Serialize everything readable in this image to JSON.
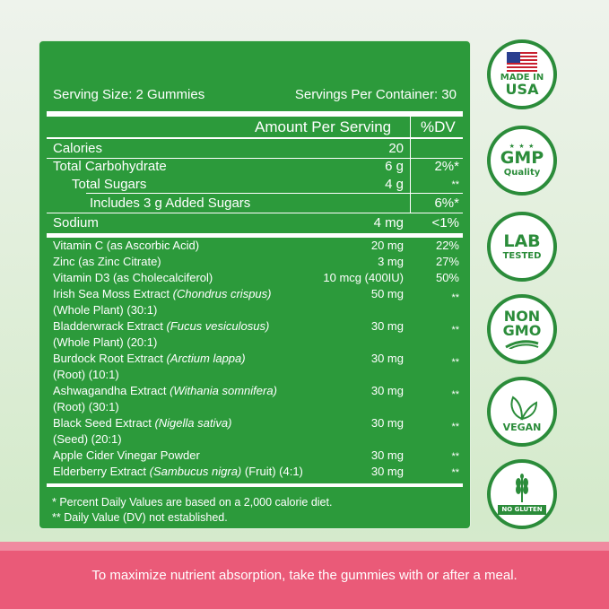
{
  "facts": {
    "serving_size": "Serving Size: 2 Gummies",
    "servings_per_container": "Servings Per Container: 30",
    "amount_header": "Amount Per Serving",
    "dv_header": "%DV",
    "macros": [
      {
        "name": "Calories",
        "amount": "20",
        "dv": ""
      },
      {
        "name": "Total Carbohydrate",
        "amount": "6 g",
        "dv": "2%*"
      },
      {
        "name": "Total Sugars",
        "amount": "4 g",
        "dv": "**"
      },
      {
        "name": "Includes 3 g Added Sugars",
        "amount": "",
        "dv": "6%*"
      },
      {
        "name": "Sodium",
        "amount": "4 mg",
        "dv": "<1%"
      }
    ],
    "vitamins": [
      {
        "name": "Vitamin C (as Ascorbic Acid)",
        "amount": "20 mg",
        "dv": "22%"
      },
      {
        "name": "Zinc (as Zinc Citrate)",
        "amount": "3 mg",
        "dv": "27%"
      },
      {
        "name": "Vitamin D3 (as Cholecalciferol)",
        "amount": "10 mcg (400IU)",
        "dv": "50%"
      }
    ],
    "extracts": [
      {
        "name": "Irish Sea Moss Extract",
        "sci": "(Chondrus crispus)",
        "line2": "(Whole Plant) (30:1)",
        "amount": "50 mg",
        "dv": "**"
      },
      {
        "name": "Bladderwrack Extract",
        "sci": "(Fucus vesiculosus)",
        "line2": "(Whole Plant) (20:1)",
        "amount": "30 mg",
        "dv": "**"
      },
      {
        "name": "Burdock Root Extract",
        "sci": "(Arctium lappa)",
        "line2": "(Root) (10:1)",
        "amount": "30 mg",
        "dv": "**"
      },
      {
        "name": "Ashwagandha Extract",
        "sci": "(Withania somnifera)",
        "line2": "(Root) (30:1)",
        "amount": "30 mg",
        "dv": "**"
      },
      {
        "name": "Black Seed Extract",
        "sci": "(Nigella sativa)",
        "line2": "(Seed) (20:1)",
        "amount": "30 mg",
        "dv": "**"
      },
      {
        "name": "Apple Cider Vinegar Powder",
        "sci": "",
        "line2": "",
        "amount": "30 mg",
        "dv": "**"
      },
      {
        "name": "Elderberry Extract ",
        "sci": "(Sambucus nigra)",
        "line2": "",
        "suffix": " (Fruit) (4:1)",
        "amount": "30 mg",
        "dv": "**"
      }
    ],
    "footnote1": "* Percent Daily Values are based on a 2,000 calorie diet.",
    "footnote2": "** Daily Value (DV) not established."
  },
  "badges": {
    "usa": {
      "line1": "MADE IN",
      "line2": "USA"
    },
    "gmp": {
      "line1": "GMP",
      "line2": "Quality",
      "stars": "★ ★ ★"
    },
    "lab": {
      "line1": "LAB",
      "line2": "TESTED"
    },
    "nongmo": {
      "line1": "NON",
      "line2": "GMO"
    },
    "vegan": {
      "label": "VEGAN"
    },
    "gluten": {
      "label": "NO GLUTEN"
    }
  },
  "bottom_text": "To maximize nutrient absorption, take the gummies with or after a meal.",
  "colors": {
    "panel_green": "#2c9a3b",
    "badge_green": "#2b8c3a",
    "pink": "#ea5a78"
  }
}
